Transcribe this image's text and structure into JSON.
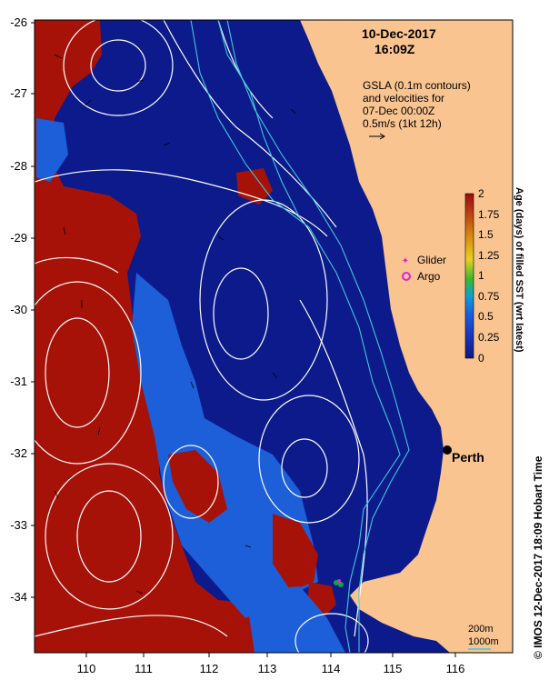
{
  "title": {
    "date": "10-Dec-2017",
    "time": "16:09Z"
  },
  "gsla_note": {
    "line1": "GSLA (0.1m contours)",
    "line2": "and velocities for",
    "line3": "07-Dec 00:00Z",
    "line4": "0.5m/s (1kt 12h)"
  },
  "legend_markers": {
    "glider": "Glider",
    "argo": "Argo"
  },
  "city": "Perth",
  "depth_legend": {
    "shallow": "200m",
    "deep": "1000m"
  },
  "colorbar": {
    "title": "Age (days) of filled SST (wrt latest)",
    "ticks": [
      "2",
      "1.75",
      "1.5",
      "1.25",
      "1",
      "0.75",
      "0.5",
      "0.25",
      "0"
    ],
    "colors": [
      "#9a0d0d",
      "#c24410",
      "#d98a10",
      "#e8d020",
      "#38b830",
      "#10a0d0",
      "#1a5fe0",
      "#1a35c0",
      "#0c1a80"
    ]
  },
  "credit": "© IMOS 12-Dec-2017 18:09 Hobart Time",
  "axes": {
    "lat_ticks": [
      "-26",
      "-27",
      "-28",
      "-29",
      "-30",
      "-31",
      "-32",
      "-33",
      "-34"
    ],
    "lon_ticks": [
      "110",
      "111",
      "112",
      "113",
      "114",
      "115",
      "116"
    ]
  },
  "colors": {
    "land": "#f9c490",
    "age_old": "#a61208",
    "age_mid": "#1c5fd8",
    "age_new": "#0c1a8c",
    "contour": "#ffffff",
    "isobath": "#40c8d8"
  }
}
